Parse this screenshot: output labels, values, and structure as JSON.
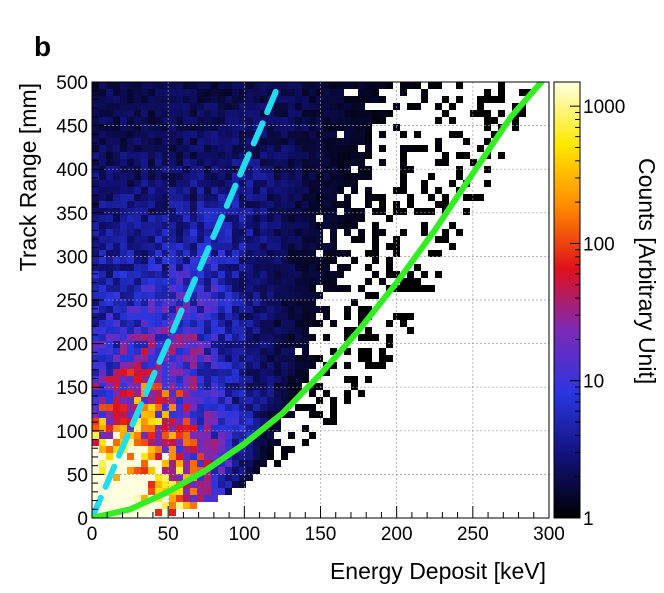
{
  "panel_label": "b",
  "chart_data": {
    "type": "heatmap",
    "title": "",
    "xlabel": "Energy Deposit [keV]",
    "ylabel": "Track Range [mm]",
    "xlim": [
      0,
      300
    ],
    "ylim": [
      0,
      500
    ],
    "x_ticks": [
      0,
      50,
      100,
      150,
      200,
      250,
      300
    ],
    "y_ticks": [
      0,
      50,
      100,
      150,
      200,
      250,
      300,
      350,
      400,
      450,
      500
    ],
    "grid": true,
    "colorbar": {
      "label": "Counts [Arbitrary Unit]",
      "scale": "log",
      "range": [
        1,
        1500
      ],
      "ticks": [
        1,
        10,
        100,
        1000
      ],
      "tick_labels": [
        "1",
        "10",
        "100",
        "1000"
      ],
      "colors": [
        "#000000",
        "#12127a",
        "#2a36e0",
        "#7a2ab8",
        "#e0101c",
        "#ff8a00",
        "#ffe800",
        "#ffffe0"
      ]
    },
    "series": [
      {
        "style": "dashed",
        "color": "#22ddee",
        "x": [
          0,
          10,
          20,
          30,
          40,
          50,
          60,
          70,
          80,
          90,
          100,
          110,
          120,
          123
        ],
        "y": [
          0,
          40,
          81,
          121,
          162,
          202,
          243,
          283,
          324,
          364,
          405,
          445,
          486,
          500
        ]
      },
      {
        "style": "solid",
        "color": "#33ee22",
        "x": [
          0,
          25,
          50,
          75,
          100,
          125,
          150,
          175,
          200,
          225,
          250,
          275,
          295
        ],
        "y": [
          0,
          10,
          30,
          55,
          85,
          120,
          165,
          215,
          270,
          330,
          395,
          460,
          500
        ]
      }
    ]
  }
}
